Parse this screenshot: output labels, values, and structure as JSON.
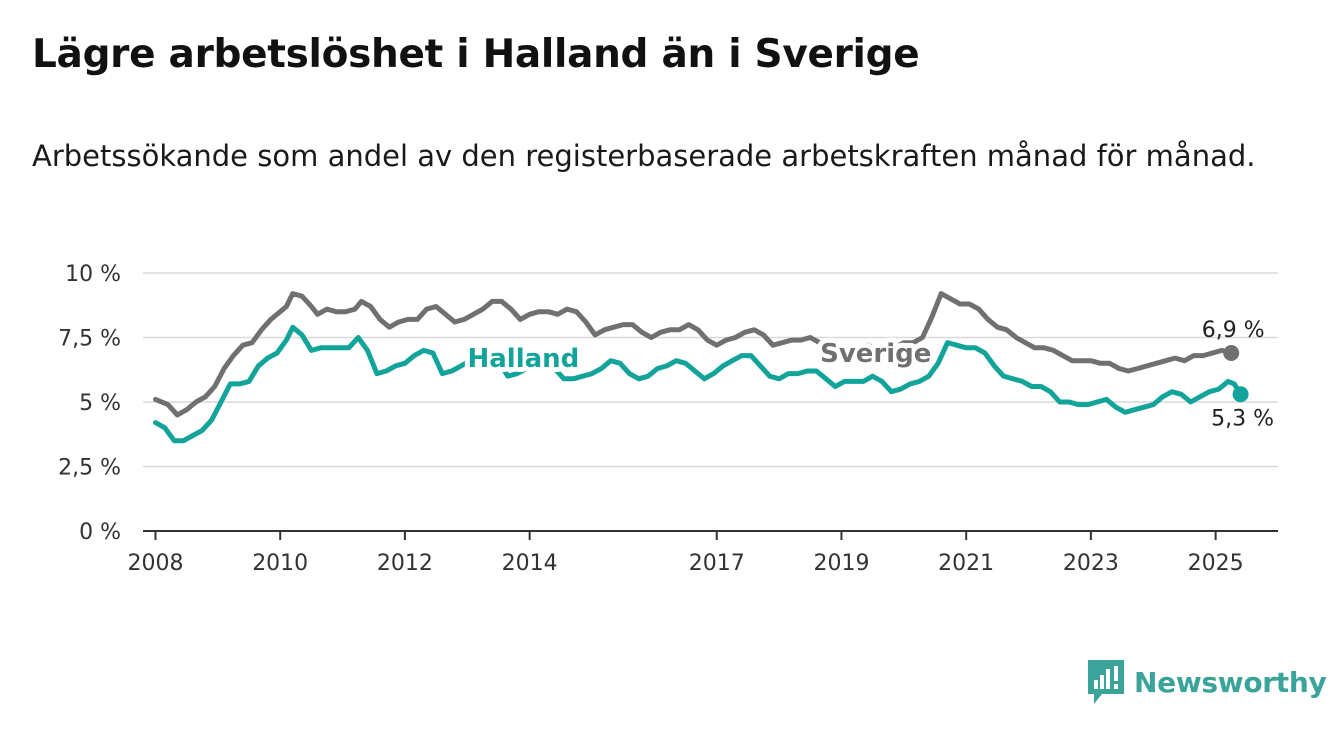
{
  "title": "Lägre arbetslöshet i Halland än i Sverige",
  "subtitle": "Arbetssökande som andel av den registerbaserade arbetskraften månad för månad.",
  "brand": {
    "name": "Newsworthy"
  },
  "colors": {
    "halland": "#12a39a",
    "sverige": "#707070",
    "grid": "#d9d9d9",
    "axis": "#333333"
  },
  "chart_data": {
    "type": "line",
    "title": "Lägre arbetslöshet i Halland än i Sverige",
    "ylim": [
      0,
      10
    ],
    "xlim": [
      2007.8,
      2026.0
    ],
    "y_ticks": [
      {
        "value": 0,
        "label": "0 %"
      },
      {
        "value": 2.5,
        "label": "2,5 %"
      },
      {
        "value": 5,
        "label": "5 %"
      },
      {
        "value": 7.5,
        "label": "7,5 %"
      },
      {
        "value": 10,
        "label": "10 %"
      }
    ],
    "x_ticks": [
      {
        "value": 2008,
        "label": "2008"
      },
      {
        "value": 2010,
        "label": "2010"
      },
      {
        "value": 2012,
        "label": "2012"
      },
      {
        "value": 2014,
        "label": "2014"
      },
      {
        "value": 2017,
        "label": "2017"
      },
      {
        "value": 2019,
        "label": "2019"
      },
      {
        "value": 2021,
        "label": "2021"
      },
      {
        "value": 2023,
        "label": "2023"
      },
      {
        "value": 2025,
        "label": "2025"
      }
    ],
    "grid": true,
    "series": [
      {
        "name": "Sverige",
        "color": "#707070",
        "end_label": "6,9 %",
        "points": [
          [
            2008.0,
            5.1
          ],
          [
            2008.2,
            4.9
          ],
          [
            2008.35,
            4.5
          ],
          [
            2008.5,
            4.7
          ],
          [
            2008.65,
            5.0
          ],
          [
            2008.8,
            5.2
          ],
          [
            2008.95,
            5.6
          ],
          [
            2009.1,
            6.3
          ],
          [
            2009.25,
            6.8
          ],
          [
            2009.4,
            7.2
          ],
          [
            2009.55,
            7.3
          ],
          [
            2009.7,
            7.8
          ],
          [
            2009.85,
            8.2
          ],
          [
            2010.0,
            8.5
          ],
          [
            2010.1,
            8.7
          ],
          [
            2010.2,
            9.2
          ],
          [
            2010.35,
            9.1
          ],
          [
            2010.5,
            8.7
          ],
          [
            2010.6,
            8.4
          ],
          [
            2010.75,
            8.6
          ],
          [
            2010.9,
            8.5
          ],
          [
            2011.05,
            8.5
          ],
          [
            2011.2,
            8.6
          ],
          [
            2011.3,
            8.9
          ],
          [
            2011.45,
            8.7
          ],
          [
            2011.6,
            8.2
          ],
          [
            2011.75,
            7.9
          ],
          [
            2011.9,
            8.1
          ],
          [
            2012.05,
            8.2
          ],
          [
            2012.2,
            8.2
          ],
          [
            2012.35,
            8.6
          ],
          [
            2012.5,
            8.7
          ],
          [
            2012.65,
            8.4
          ],
          [
            2012.8,
            8.1
          ],
          [
            2012.95,
            8.2
          ],
          [
            2013.1,
            8.4
          ],
          [
            2013.25,
            8.6
          ],
          [
            2013.4,
            8.9
          ],
          [
            2013.55,
            8.9
          ],
          [
            2013.7,
            8.6
          ],
          [
            2013.85,
            8.2
          ],
          [
            2014.0,
            8.4
          ],
          [
            2014.15,
            8.5
          ],
          [
            2014.3,
            8.5
          ],
          [
            2014.45,
            8.4
          ],
          [
            2014.6,
            8.6
          ],
          [
            2014.75,
            8.5
          ],
          [
            2014.9,
            8.1
          ],
          [
            2015.05,
            7.6
          ],
          [
            2015.2,
            7.8
          ],
          [
            2015.35,
            7.9
          ],
          [
            2015.5,
            8.0
          ],
          [
            2015.65,
            8.0
          ],
          [
            2015.8,
            7.7
          ],
          [
            2015.95,
            7.5
          ],
          [
            2016.1,
            7.7
          ],
          [
            2016.25,
            7.8
          ],
          [
            2016.4,
            7.8
          ],
          [
            2016.55,
            8.0
          ],
          [
            2016.7,
            7.8
          ],
          [
            2016.85,
            7.4
          ],
          [
            2017.0,
            7.2
          ],
          [
            2017.15,
            7.4
          ],
          [
            2017.3,
            7.5
          ],
          [
            2017.45,
            7.7
          ],
          [
            2017.6,
            7.8
          ],
          [
            2017.75,
            7.6
          ],
          [
            2017.9,
            7.2
          ],
          [
            2018.05,
            7.3
          ],
          [
            2018.2,
            7.4
          ],
          [
            2018.35,
            7.4
          ],
          [
            2018.5,
            7.5
          ],
          [
            2018.65,
            7.3
          ],
          [
            2018.8,
            6.9
          ],
          [
            2018.95,
            7.0
          ],
          [
            2019.1,
            7.0
          ],
          [
            2019.25,
            7.1
          ],
          [
            2019.4,
            7.2
          ],
          [
            2019.55,
            7.1
          ],
          [
            2019.7,
            7.0
          ],
          [
            2019.85,
            7.1
          ],
          [
            2020.0,
            7.3
          ],
          [
            2020.15,
            7.3
          ],
          [
            2020.3,
            7.5
          ],
          [
            2020.45,
            8.3
          ],
          [
            2020.6,
            9.2
          ],
          [
            2020.75,
            9.0
          ],
          [
            2020.9,
            8.8
          ],
          [
            2021.05,
            8.8
          ],
          [
            2021.2,
            8.6
          ],
          [
            2021.35,
            8.2
          ],
          [
            2021.5,
            7.9
          ],
          [
            2021.65,
            7.8
          ],
          [
            2021.8,
            7.5
          ],
          [
            2021.95,
            7.3
          ],
          [
            2022.1,
            7.1
          ],
          [
            2022.25,
            7.1
          ],
          [
            2022.4,
            7.0
          ],
          [
            2022.55,
            6.8
          ],
          [
            2022.7,
            6.6
          ],
          [
            2022.85,
            6.6
          ],
          [
            2023.0,
            6.6
          ],
          [
            2023.15,
            6.5
          ],
          [
            2023.3,
            6.5
          ],
          [
            2023.45,
            6.3
          ],
          [
            2023.6,
            6.2
          ],
          [
            2023.75,
            6.3
          ],
          [
            2023.9,
            6.4
          ],
          [
            2024.05,
            6.5
          ],
          [
            2024.2,
            6.6
          ],
          [
            2024.35,
            6.7
          ],
          [
            2024.5,
            6.6
          ],
          [
            2024.65,
            6.8
          ],
          [
            2024.8,
            6.8
          ],
          [
            2024.95,
            6.9
          ],
          [
            2025.1,
            7.0
          ],
          [
            2025.25,
            6.9
          ]
        ]
      },
      {
        "name": "Halland",
        "color": "#12a39a",
        "end_label": "5,3 %",
        "points": [
          [
            2008.0,
            4.2
          ],
          [
            2008.15,
            4.0
          ],
          [
            2008.3,
            3.5
          ],
          [
            2008.45,
            3.5
          ],
          [
            2008.6,
            3.7
          ],
          [
            2008.75,
            3.9
          ],
          [
            2008.9,
            4.3
          ],
          [
            2009.05,
            5.0
          ],
          [
            2009.2,
            5.7
          ],
          [
            2009.35,
            5.7
          ],
          [
            2009.5,
            5.8
          ],
          [
            2009.65,
            6.4
          ],
          [
            2009.8,
            6.7
          ],
          [
            2009.95,
            6.9
          ],
          [
            2010.1,
            7.4
          ],
          [
            2010.2,
            7.9
          ],
          [
            2010.35,
            7.6
          ],
          [
            2010.5,
            7.0
          ],
          [
            2010.65,
            7.1
          ],
          [
            2010.8,
            7.1
          ],
          [
            2010.95,
            7.1
          ],
          [
            2011.1,
            7.1
          ],
          [
            2011.25,
            7.5
          ],
          [
            2011.4,
            7.0
          ],
          [
            2011.55,
            6.1
          ],
          [
            2011.7,
            6.2
          ],
          [
            2011.85,
            6.4
          ],
          [
            2012.0,
            6.5
          ],
          [
            2012.15,
            6.8
          ],
          [
            2012.3,
            7.0
          ],
          [
            2012.45,
            6.9
          ],
          [
            2012.6,
            6.1
          ],
          [
            2012.75,
            6.2
          ],
          [
            2012.9,
            6.4
          ],
          [
            2013.05,
            6.6
          ],
          [
            2013.2,
            6.8
          ],
          [
            2013.35,
            6.9
          ],
          [
            2013.5,
            6.6
          ],
          [
            2013.65,
            6.0
          ],
          [
            2013.8,
            6.1
          ],
          [
            2013.95,
            6.3
          ],
          [
            2014.1,
            6.3
          ],
          [
            2014.25,
            6.4
          ],
          [
            2014.4,
            6.3
          ],
          [
            2014.55,
            5.9
          ],
          [
            2014.7,
            5.9
          ],
          [
            2014.85,
            6.0
          ],
          [
            2015.0,
            6.1
          ],
          [
            2015.15,
            6.3
          ],
          [
            2015.3,
            6.6
          ],
          [
            2015.45,
            6.5
          ],
          [
            2015.6,
            6.1
          ],
          [
            2015.75,
            5.9
          ],
          [
            2015.9,
            6.0
          ],
          [
            2016.05,
            6.3
          ],
          [
            2016.2,
            6.4
          ],
          [
            2016.35,
            6.6
          ],
          [
            2016.5,
            6.5
          ],
          [
            2016.65,
            6.2
          ],
          [
            2016.8,
            5.9
          ],
          [
            2016.95,
            6.1
          ],
          [
            2017.1,
            6.4
          ],
          [
            2017.25,
            6.6
          ],
          [
            2017.4,
            6.8
          ],
          [
            2017.55,
            6.8
          ],
          [
            2017.7,
            6.4
          ],
          [
            2017.85,
            6.0
          ],
          [
            2018.0,
            5.9
          ],
          [
            2018.15,
            6.1
          ],
          [
            2018.3,
            6.1
          ],
          [
            2018.45,
            6.2
          ],
          [
            2018.6,
            6.2
          ],
          [
            2018.75,
            5.9
          ],
          [
            2018.9,
            5.6
          ],
          [
            2019.05,
            5.8
          ],
          [
            2019.2,
            5.8
          ],
          [
            2019.35,
            5.8
          ],
          [
            2019.5,
            6.0
          ],
          [
            2019.65,
            5.8
          ],
          [
            2019.8,
            5.4
          ],
          [
            2019.95,
            5.5
          ],
          [
            2020.1,
            5.7
          ],
          [
            2020.25,
            5.8
          ],
          [
            2020.4,
            6.0
          ],
          [
            2020.55,
            6.5
          ],
          [
            2020.7,
            7.3
          ],
          [
            2020.85,
            7.2
          ],
          [
            2021.0,
            7.1
          ],
          [
            2021.15,
            7.1
          ],
          [
            2021.3,
            6.9
          ],
          [
            2021.45,
            6.4
          ],
          [
            2021.6,
            6.0
          ],
          [
            2021.75,
            5.9
          ],
          [
            2021.9,
            5.8
          ],
          [
            2022.05,
            5.6
          ],
          [
            2022.2,
            5.6
          ],
          [
            2022.35,
            5.4
          ],
          [
            2022.5,
            5.0
          ],
          [
            2022.65,
            5.0
          ],
          [
            2022.8,
            4.9
          ],
          [
            2022.95,
            4.9
          ],
          [
            2023.1,
            5.0
          ],
          [
            2023.25,
            5.1
          ],
          [
            2023.4,
            4.8
          ],
          [
            2023.55,
            4.6
          ],
          [
            2023.7,
            4.7
          ],
          [
            2023.85,
            4.8
          ],
          [
            2024.0,
            4.9
          ],
          [
            2024.15,
            5.2
          ],
          [
            2024.3,
            5.4
          ],
          [
            2024.45,
            5.3
          ],
          [
            2024.6,
            5.0
          ],
          [
            2024.75,
            5.2
          ],
          [
            2024.9,
            5.4
          ],
          [
            2025.05,
            5.5
          ],
          [
            2025.2,
            5.8
          ],
          [
            2025.3,
            5.7
          ],
          [
            2025.4,
            5.3
          ]
        ]
      }
    ],
    "annotations": [
      {
        "text": "Halland",
        "series": "Halland",
        "x": 2013.9,
        "y": 6.7
      },
      {
        "text": "Sverige",
        "series": "Sverige",
        "x": 2019.55,
        "y": 6.9
      }
    ]
  }
}
